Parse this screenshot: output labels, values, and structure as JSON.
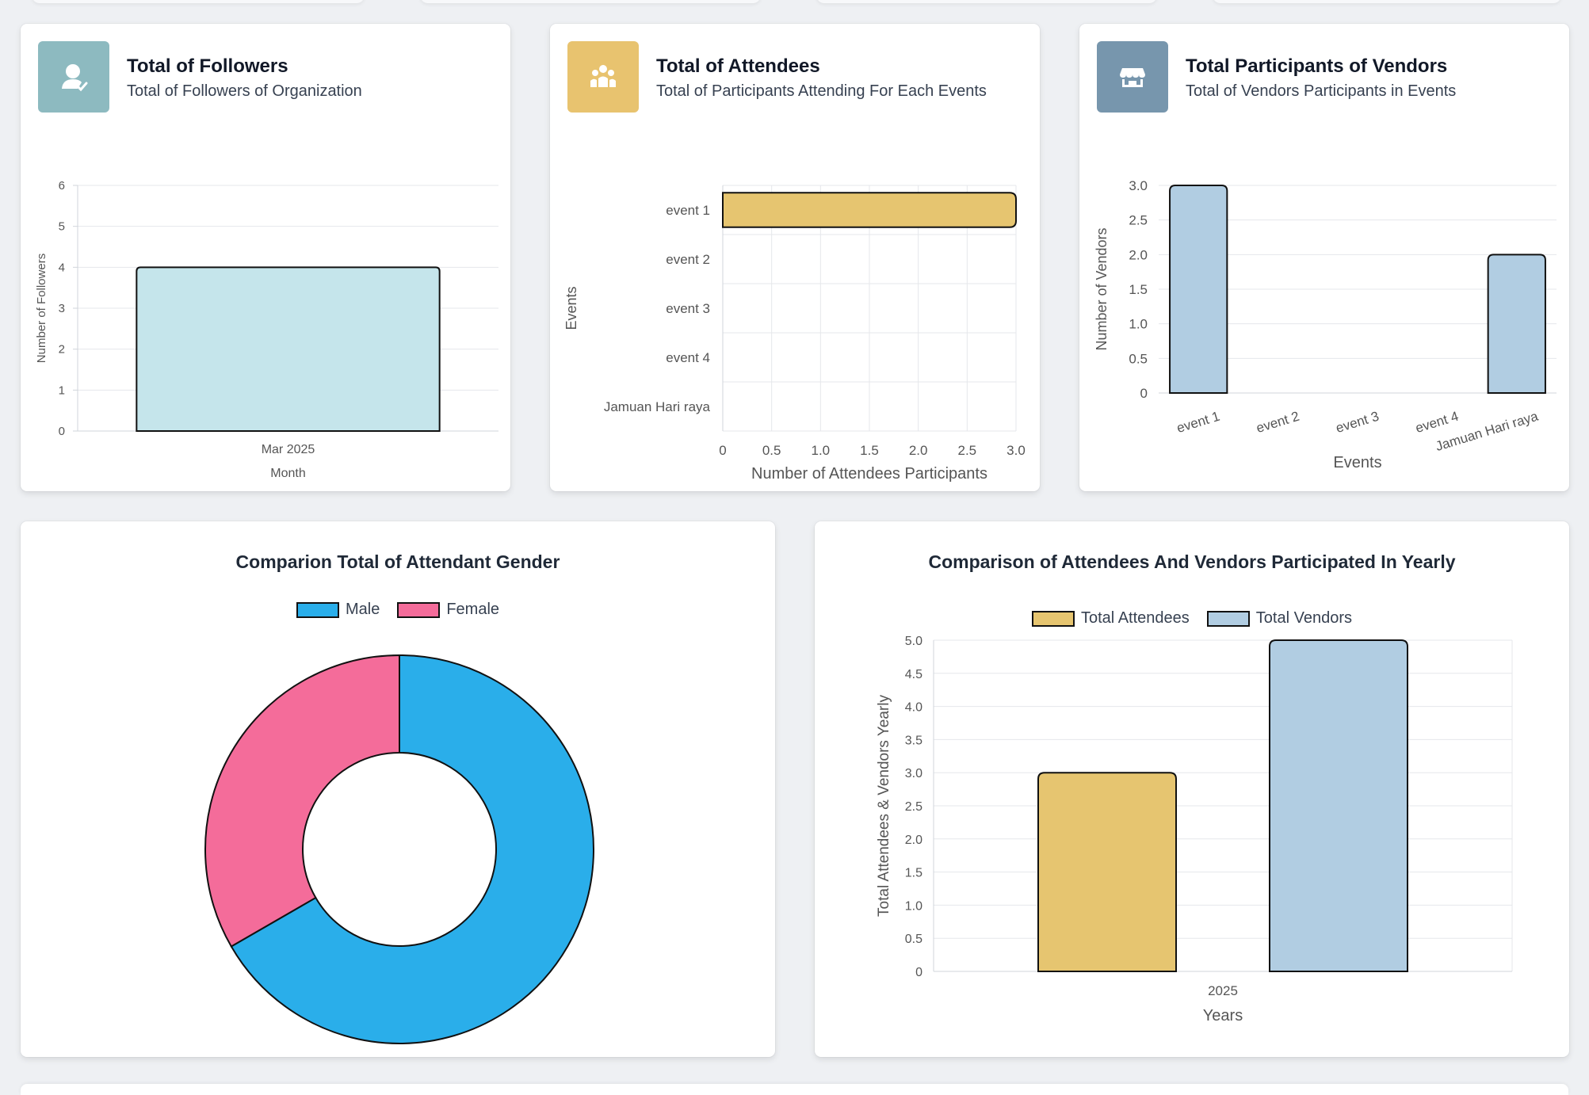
{
  "colors": {
    "followers_icon": "#8dbac0",
    "attendees_icon": "#e8c36f",
    "vendors_icon": "#7796ad",
    "followers_bar": "#c5e5eb",
    "attendees_bar": "#e6c570",
    "vendors_bar": "#b1cde2",
    "male": "#2aaeea",
    "female": "#f46c9a"
  },
  "cards": {
    "followers": {
      "title": "Total of Followers",
      "subtitle": "Total of Followers of Organization",
      "icon": "user-check-icon"
    },
    "attendees": {
      "title": "Total of Attendees",
      "subtitle": "Total of Participants Attending For Each Events",
      "icon": "people-group-icon"
    },
    "vendors": {
      "title": "Total Participants of Vendors",
      "subtitle": "Total of Vendors Participants in Events",
      "icon": "store-icon"
    }
  },
  "gender_panel": {
    "title": "Comparion Total of Attendant Gender"
  },
  "yearly_panel": {
    "title": "Comparison of Attendees And Vendors Participated In Yearly"
  },
  "chart_data": [
    {
      "id": "followers",
      "type": "bar",
      "categories": [
        "Mar 2025"
      ],
      "values": [
        4
      ],
      "xlabel": "Month",
      "ylabel": "Number of Followers",
      "ylim": [
        0,
        6
      ],
      "yticks": [
        "0",
        "1",
        "2",
        "3",
        "4",
        "5",
        "6"
      ],
      "grid": true
    },
    {
      "id": "attendees",
      "type": "bar",
      "orientation": "horizontal",
      "categories": [
        "event 1",
        "event 2",
        "event 3",
        "event 4",
        "Jamuan Hari raya"
      ],
      "values": [
        3,
        0,
        0,
        0,
        0
      ],
      "xlabel": "Number of Attendees Participants",
      "ylabel": "Events",
      "xlim": [
        0,
        3
      ],
      "xticks": [
        "0",
        "0.5",
        "1.0",
        "1.5",
        "2.0",
        "2.5",
        "3.0"
      ],
      "grid": true
    },
    {
      "id": "vendors",
      "type": "bar",
      "categories": [
        "event 1",
        "event 2",
        "event 3",
        "event 4",
        "Jamuan Hari raya"
      ],
      "values": [
        3,
        0,
        0,
        0,
        2
      ],
      "xlabel": "Events",
      "ylabel": "Number of Vendors",
      "ylim": [
        0,
        3
      ],
      "yticks": [
        "0",
        "0.5",
        "1.0",
        "1.5",
        "2.0",
        "2.5",
        "3.0"
      ],
      "grid": true
    },
    {
      "id": "gender",
      "type": "pie",
      "variant": "doughnut",
      "labels": [
        "Male",
        "Female"
      ],
      "values": [
        2,
        1
      ],
      "legend": "top"
    },
    {
      "id": "yearly",
      "type": "bar",
      "categories": [
        "2025"
      ],
      "series": [
        {
          "name": "Total Attendees",
          "values": [
            3
          ]
        },
        {
          "name": "Total Vendors",
          "values": [
            5
          ]
        }
      ],
      "xlabel": "Years",
      "ylabel": "Total Attendees & Vendors Yearly",
      "ylim": [
        0,
        5
      ],
      "yticks": [
        "0",
        "0.5",
        "1.0",
        "1.5",
        "2.0",
        "2.5",
        "3.0",
        "3.5",
        "4.0",
        "4.5",
        "5.0"
      ],
      "legend": "top",
      "grid": true
    }
  ]
}
